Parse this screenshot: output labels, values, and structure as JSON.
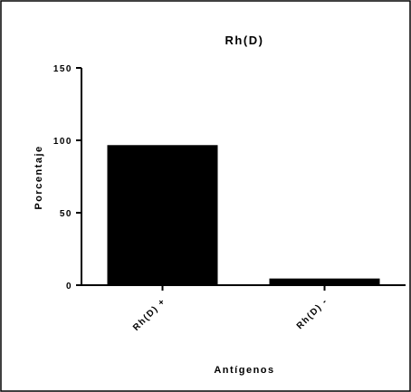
{
  "chart_data": {
    "type": "bar",
    "title": "Rh(D)",
    "xlabel": "Antígenos",
    "ylabel": "Porcentaje",
    "categories": [
      "Rh(D) +",
      "Rh(D) -"
    ],
    "values": [
      96.7,
      4.6
    ],
    "ylim": [
      0,
      150
    ],
    "yticks": [
      0,
      50,
      100,
      150
    ],
    "grid": false,
    "bar_color": "#000000"
  }
}
